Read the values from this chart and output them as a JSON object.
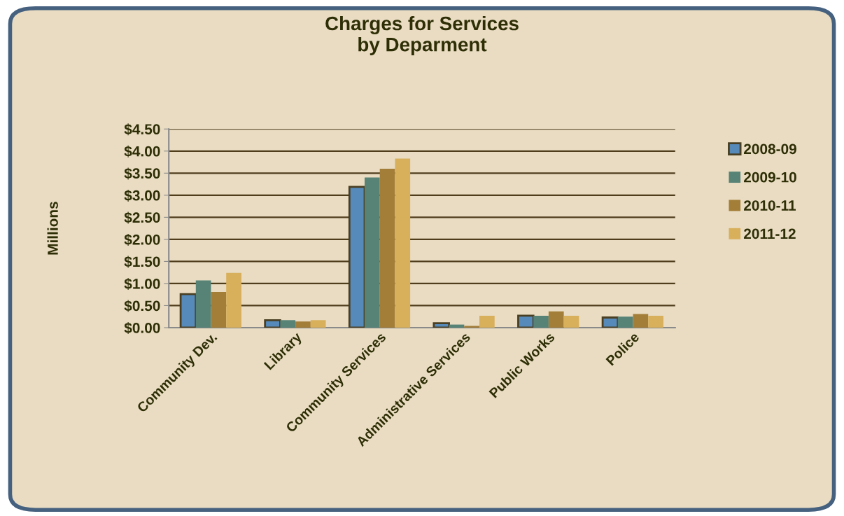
{
  "chart_data": {
    "type": "bar",
    "title": "Charges for Services\nby Deparment",
    "ylabel": "Millions",
    "categories": [
      "Community Dev.",
      "Library",
      "Community Services",
      "Administrative Services",
      "Public Works",
      "Police"
    ],
    "series": [
      {
        "name": "2008-09",
        "color": "#558abb",
        "values": [
          0.76,
          0.17,
          3.19,
          0.1,
          0.27,
          0.23
        ]
      },
      {
        "name": "2009-10",
        "color": "#578377",
        "values": [
          1.07,
          0.17,
          3.4,
          0.07,
          0.27,
          0.25
        ]
      },
      {
        "name": "2010-11",
        "color": "#a37e38",
        "values": [
          0.81,
          0.14,
          3.6,
          0.04,
          0.37,
          0.31
        ]
      },
      {
        "name": "2011-12",
        "color": "#d8b05c",
        "values": [
          1.24,
          0.17,
          3.83,
          0.27,
          0.27,
          0.27
        ]
      }
    ],
    "ylim": [
      0,
      4.5
    ],
    "yticks": [
      {
        "value": 0,
        "label": "$0.00"
      },
      {
        "value": 0.5,
        "label": "$0.50"
      },
      {
        "value": 1,
        "label": "$1.00"
      },
      {
        "value": 1.5,
        "label": "$1.50"
      },
      {
        "value": 2,
        "label": "$2.00"
      },
      {
        "value": 2.5,
        "label": "$2.50"
      },
      {
        "value": 3,
        "label": "$3.00"
      },
      {
        "value": 3.5,
        "label": "$3.50"
      },
      {
        "value": 4,
        "label": "$4.00"
      },
      {
        "value": 4.5,
        "label": "$4.50"
      }
    ],
    "grid": "y",
    "legend": "right"
  }
}
